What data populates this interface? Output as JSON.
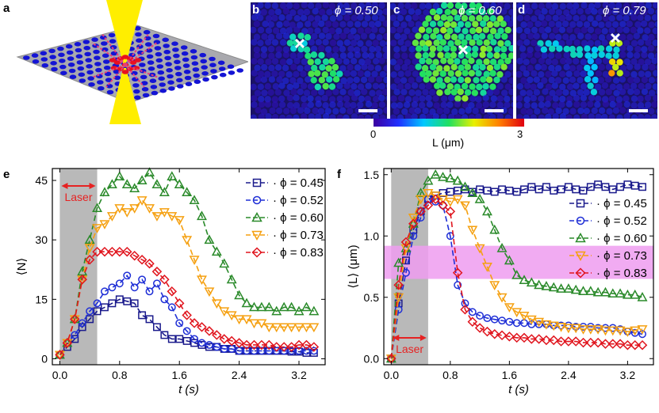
{
  "panels": {
    "a": {
      "label": "a"
    },
    "b": {
      "label": "b",
      "phi": "ϕ = 0.50"
    },
    "c": {
      "label": "c",
      "phi": "ϕ = 0.60"
    },
    "d": {
      "label": "d",
      "phi": "ϕ = 0.79"
    },
    "e": {
      "label": "e"
    },
    "f": {
      "label": "f"
    }
  },
  "colorbar": {
    "min_label": "0",
    "max_label": "3",
    "label": "L (μm)"
  },
  "laser_label": "Laser",
  "colors": {
    "navy": "#1a1a8c",
    "blue": "#1f2fd6",
    "green": "#2a8a2a",
    "orange": "#f5a010",
    "red": "#e0151e",
    "laser": "#e62222",
    "shade": "#b9b9b9",
    "pink": "#ef9cf0"
  },
  "chart_data": [
    {
      "id": "e",
      "type": "line",
      "xlabel": "t (s)",
      "ylabel": "⟨N⟩",
      "xlim": [
        -0.1,
        3.55
      ],
      "ylim": [
        -1.5,
        48
      ],
      "xticks": [
        0.0,
        0.8,
        1.6,
        2.4,
        3.2
      ],
      "xtick_labels": [
        "0.0",
        "0.8",
        "1.6",
        "2.4",
        "3.2"
      ],
      "yticks": [
        0,
        15,
        30,
        45
      ],
      "ytick_labels": [
        "0",
        "15",
        "30",
        "45"
      ],
      "laser_region": [
        0.0,
        0.5
      ],
      "series": [
        {
          "name": "ϕ = 0.45",
          "marker": "square",
          "x": [
            0.0,
            0.1,
            0.2,
            0.3,
            0.4,
            0.5,
            0.6,
            0.7,
            0.8,
            0.9,
            1.0,
            1.1,
            1.2,
            1.3,
            1.4,
            1.5,
            1.6,
            1.7,
            1.8,
            1.9,
            2.0,
            2.1,
            2.2,
            2.3,
            2.4,
            2.5,
            2.6,
            2.7,
            2.8,
            2.9,
            3.0,
            3.1,
            3.2,
            3.3,
            3.4
          ],
          "y": [
            1,
            3,
            5,
            8,
            10,
            12,
            13,
            14,
            15,
            14.5,
            14,
            11,
            10,
            8,
            6,
            5,
            5,
            4.5,
            4,
            3.5,
            3,
            3,
            2.5,
            2.5,
            2,
            2,
            2,
            2,
            2,
            2,
            2,
            1.8,
            1.8,
            1.5,
            1.5
          ]
        },
        {
          "name": "ϕ = 0.52",
          "marker": "circle",
          "x": [
            0.0,
            0.1,
            0.2,
            0.3,
            0.4,
            0.5,
            0.6,
            0.7,
            0.8,
            0.9,
            1.0,
            1.1,
            1.2,
            1.3,
            1.4,
            1.5,
            1.6,
            1.7,
            1.8,
            1.9,
            2.0,
            2.1,
            2.2,
            2.3,
            2.4,
            2.5,
            2.6,
            2.7,
            2.8,
            2.9,
            3.0,
            3.1,
            3.2,
            3.3,
            3.4
          ],
          "y": [
            1,
            4,
            6,
            9,
            12,
            14,
            17,
            18,
            19,
            21,
            18,
            20,
            17,
            19,
            15,
            13,
            9,
            7,
            5,
            4,
            3.5,
            3,
            2.5,
            2.5,
            2,
            2,
            2,
            2,
            2,
            2,
            2,
            2,
            2,
            2,
            2
          ]
        },
        {
          "name": "ϕ = 0.60",
          "marker": "triangle",
          "x": [
            0.0,
            0.1,
            0.2,
            0.3,
            0.4,
            0.5,
            0.6,
            0.7,
            0.8,
            0.9,
            1.0,
            1.1,
            1.2,
            1.3,
            1.4,
            1.5,
            1.6,
            1.7,
            1.8,
            1.9,
            2.0,
            2.1,
            2.2,
            2.3,
            2.4,
            2.5,
            2.6,
            2.7,
            2.8,
            2.9,
            3.0,
            3.1,
            3.2,
            3.3,
            3.4
          ],
          "y": [
            1,
            4,
            10,
            22,
            30,
            38,
            42,
            44,
            46,
            44,
            43,
            45,
            47,
            44,
            42,
            46,
            44,
            42,
            40,
            36,
            30,
            27,
            24,
            20,
            16,
            14,
            13,
            13,
            13,
            12,
            13,
            13,
            12,
            13,
            12
          ]
        },
        {
          "name": "ϕ = 0.73",
          "marker": "triangle-down",
          "x": [
            0.0,
            0.1,
            0.2,
            0.3,
            0.4,
            0.5,
            0.6,
            0.7,
            0.8,
            0.9,
            1.0,
            1.1,
            1.2,
            1.3,
            1.4,
            1.5,
            1.6,
            1.7,
            1.8,
            1.9,
            2.0,
            2.1,
            2.2,
            2.3,
            2.4,
            2.5,
            2.6,
            2.7,
            2.8,
            2.9,
            3.0,
            3.1,
            3.2,
            3.3,
            3.4
          ],
          "y": [
            1,
            4,
            10,
            20,
            28,
            33,
            34,
            36,
            38,
            37,
            38,
            40,
            38,
            36,
            37,
            36,
            35,
            30,
            25,
            20,
            17,
            14,
            12,
            11,
            10,
            10,
            9,
            9,
            8,
            8,
            8,
            8,
            8,
            8,
            8
          ]
        },
        {
          "name": "ϕ = 0.83",
          "marker": "diamond",
          "x": [
            0.0,
            0.1,
            0.2,
            0.3,
            0.4,
            0.5,
            0.6,
            0.7,
            0.8,
            0.9,
            1.0,
            1.1,
            1.2,
            1.3,
            1.4,
            1.5,
            1.6,
            1.7,
            1.8,
            1.9,
            2.0,
            2.1,
            2.2,
            2.3,
            2.4,
            2.5,
            2.6,
            2.7,
            2.8,
            2.9,
            3.0,
            3.1,
            3.2,
            3.3,
            3.4
          ],
          "y": [
            1,
            4,
            10,
            20,
            25,
            27,
            27,
            27,
            27,
            27,
            26,
            25,
            24,
            22,
            20,
            17,
            14,
            11,
            9,
            8,
            7,
            6,
            5,
            4.5,
            4,
            3.5,
            3.5,
            3.5,
            3.5,
            3,
            3,
            3,
            3.5,
            3.5,
            3
          ]
        }
      ]
    },
    {
      "id": "f",
      "type": "line",
      "xlabel": "t (s)",
      "ylabel": "⟨L⟩ (μm)",
      "xlim": [
        -0.1,
        3.55
      ],
      "ylim": [
        -0.05,
        1.55
      ],
      "xticks": [
        0.0,
        0.8,
        1.6,
        2.4,
        3.2
      ],
      "xtick_labels": [
        "0.0",
        "0.8",
        "1.6",
        "2.4",
        "3.2"
      ],
      "yticks": [
        0.0,
        0.5,
        1.0,
        1.5
      ],
      "ytick_labels": [
        "0.0",
        "0.5",
        "1.0",
        "1.5"
      ],
      "laser_region": [
        0.0,
        0.5
      ],
      "band": [
        0.65,
        0.92
      ],
      "series": [
        {
          "name": "ϕ = 0.45",
          "marker": "square",
          "x": [
            0.0,
            0.1,
            0.2,
            0.3,
            0.4,
            0.5,
            0.6,
            0.7,
            0.8,
            0.9,
            1.0,
            1.1,
            1.2,
            1.3,
            1.4,
            1.5,
            1.6,
            1.7,
            1.8,
            1.9,
            2.0,
            2.1,
            2.2,
            2.3,
            2.4,
            2.5,
            2.6,
            2.7,
            2.8,
            2.9,
            3.0,
            3.1,
            3.2,
            3.3,
            3.4
          ],
          "y": [
            0.0,
            0.45,
            0.8,
            1.05,
            1.2,
            1.3,
            1.33,
            1.35,
            1.36,
            1.37,
            1.38,
            1.36,
            1.38,
            1.37,
            1.36,
            1.38,
            1.37,
            1.36,
            1.38,
            1.4,
            1.38,
            1.4,
            1.37,
            1.38,
            1.4,
            1.38,
            1.37,
            1.4,
            1.42,
            1.4,
            1.38,
            1.4,
            1.42,
            1.41,
            1.4
          ]
        },
        {
          "name": "ϕ = 0.52",
          "marker": "circle",
          "x": [
            0.0,
            0.1,
            0.2,
            0.3,
            0.4,
            0.5,
            0.6,
            0.7,
            0.8,
            0.9,
            1.0,
            1.1,
            1.2,
            1.3,
            1.4,
            1.5,
            1.6,
            1.7,
            1.8,
            1.9,
            2.0,
            2.1,
            2.2,
            2.3,
            2.4,
            2.5,
            2.6,
            2.7,
            2.8,
            2.9,
            3.0,
            3.1,
            3.2,
            3.3,
            3.4
          ],
          "y": [
            0.0,
            0.4,
            0.7,
            1.0,
            1.15,
            1.3,
            1.28,
            1.25,
            1.0,
            0.6,
            0.45,
            0.38,
            0.35,
            0.33,
            0.32,
            0.31,
            0.3,
            0.29,
            0.29,
            0.28,
            0.28,
            0.28,
            0.27,
            0.27,
            0.27,
            0.26,
            0.26,
            0.26,
            0.25,
            0.25,
            0.25,
            0.24,
            0.22,
            0.21,
            0.2
          ]
        },
        {
          "name": "ϕ = 0.60",
          "marker": "triangle",
          "x": [
            0.0,
            0.1,
            0.2,
            0.3,
            0.4,
            0.5,
            0.6,
            0.7,
            0.8,
            0.9,
            1.0,
            1.1,
            1.2,
            1.3,
            1.4,
            1.5,
            1.6,
            1.7,
            1.8,
            1.9,
            2.0,
            2.1,
            2.2,
            2.3,
            2.4,
            2.5,
            2.6,
            2.7,
            2.8,
            2.9,
            3.0,
            3.1,
            3.2,
            3.3,
            3.4
          ],
          "y": [
            0.0,
            0.78,
            0.9,
            1.1,
            1.35,
            1.45,
            1.5,
            1.48,
            1.47,
            1.45,
            1.4,
            1.35,
            1.3,
            1.2,
            1.05,
            0.9,
            0.8,
            0.68,
            0.64,
            0.62,
            0.6,
            0.59,
            0.58,
            0.57,
            0.57,
            0.56,
            0.55,
            0.55,
            0.54,
            0.54,
            0.53,
            0.53,
            0.52,
            0.52,
            0.5
          ]
        },
        {
          "name": "ϕ = 0.73",
          "marker": "triangle-down",
          "x": [
            0.0,
            0.1,
            0.2,
            0.3,
            0.4,
            0.5,
            0.6,
            0.7,
            0.8,
            0.9,
            1.0,
            1.1,
            1.2,
            1.3,
            1.4,
            1.5,
            1.6,
            1.7,
            1.8,
            1.9,
            2.0,
            2.1,
            2.2,
            2.3,
            2.4,
            2.5,
            2.6,
            2.7,
            2.8,
            2.9,
            3.0,
            3.1,
            3.2,
            3.3,
            3.4
          ],
          "y": [
            0.0,
            0.5,
            0.9,
            1.15,
            1.3,
            1.35,
            1.33,
            1.3,
            1.28,
            1.3,
            1.25,
            1.05,
            0.9,
            0.75,
            0.6,
            0.5,
            0.42,
            0.38,
            0.35,
            0.32,
            0.3,
            0.28,
            0.27,
            0.26,
            0.25,
            0.25,
            0.24,
            0.24,
            0.24,
            0.23,
            0.23,
            0.23,
            0.22,
            0.23,
            0.24
          ]
        },
        {
          "name": "ϕ = 0.83",
          "marker": "diamond",
          "x": [
            0.0,
            0.1,
            0.2,
            0.3,
            0.4,
            0.5,
            0.6,
            0.7,
            0.8,
            0.9,
            1.0,
            1.1,
            1.2,
            1.3,
            1.4,
            1.5,
            1.6,
            1.7,
            1.8,
            1.9,
            2.0,
            2.1,
            2.2,
            2.3,
            2.4,
            2.5,
            2.6,
            2.7,
            2.8,
            2.9,
            3.0,
            3.1,
            3.2,
            3.3,
            3.4
          ],
          "y": [
            0.0,
            0.6,
            0.95,
            1.1,
            1.2,
            1.25,
            1.3,
            1.25,
            1.2,
            0.7,
            0.4,
            0.3,
            0.25,
            0.22,
            0.2,
            0.19,
            0.18,
            0.17,
            0.17,
            0.16,
            0.16,
            0.15,
            0.15,
            0.14,
            0.14,
            0.14,
            0.13,
            0.13,
            0.13,
            0.12,
            0.12,
            0.12,
            0.11,
            0.11,
            0.11
          ]
        }
      ]
    }
  ]
}
